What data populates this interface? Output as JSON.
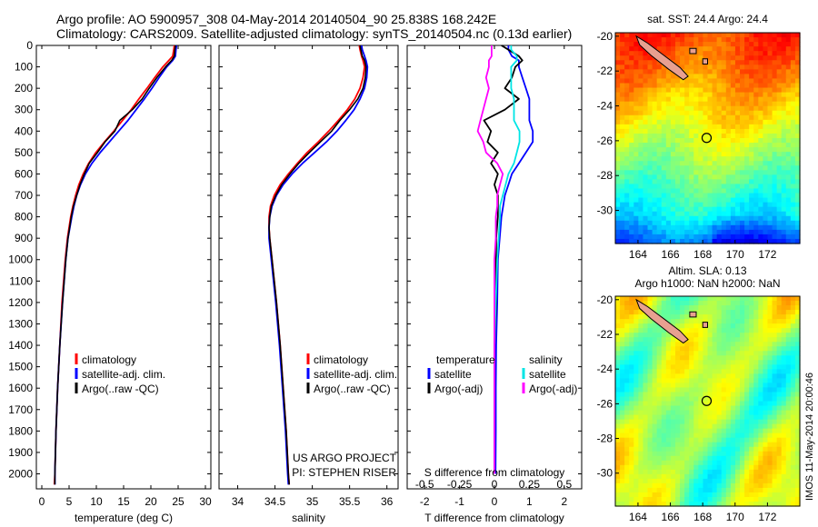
{
  "header": {
    "line1": "Argo profile: AO 5900957_308 04-May-2014 20140504_90 25.838S 168.242E",
    "line2": "Climatology: CARS2009. Satellite-adjusted climatology: synTS_20140504.nc (0.13d earlier)"
  },
  "colors": {
    "climatology": "#ff0000",
    "satellite": "#0000ff",
    "argo": "#000000",
    "argo_s": "#ff00ff",
    "sat_s": "#00e5e5",
    "land": "#e8a090"
  },
  "depth_axis": {
    "ylim": [
      0,
      2070
    ],
    "ticks": [
      0,
      100,
      200,
      300,
      400,
      500,
      600,
      700,
      800,
      900,
      1000,
      1100,
      1200,
      1300,
      1400,
      1500,
      1600,
      1700,
      1800,
      1900,
      2000
    ]
  },
  "chart_data": [
    {
      "type": "line",
      "name": "temperature",
      "xlabel": "temperature (deg C)",
      "xlim": [
        -1,
        31
      ],
      "xticks": [
        0,
        5,
        10,
        15,
        20,
        25,
        30
      ],
      "y": [
        0,
        20,
        50,
        70,
        100,
        150,
        200,
        250,
        300,
        350,
        400,
        450,
        500,
        550,
        600,
        650,
        700,
        750,
        800,
        900,
        1000,
        1200,
        1400,
        1600,
        1800,
        2000,
        2050
      ],
      "series": [
        {
          "name": "climatology",
          "key": "clim",
          "values": [
            24.3,
            24.2,
            24.0,
            23.3,
            22.2,
            20.7,
            19.3,
            17.8,
            16.4,
            14.8,
            13.2,
            11.5,
            9.9,
            8.6,
            7.6,
            6.8,
            6.2,
            5.7,
            5.3,
            4.7,
            4.3,
            3.7,
            3.3,
            2.9,
            2.6,
            2.4,
            2.3
          ]
        },
        {
          "name": "satellite-adj. clim.",
          "key": "sat",
          "values": [
            24.7,
            24.6,
            24.5,
            24.0,
            22.9,
            21.5,
            20.2,
            18.8,
            17.3,
            15.8,
            14.1,
            12.4,
            10.7,
            9.2,
            8.0,
            7.1,
            6.4,
            5.9,
            5.5,
            4.8,
            4.4,
            3.8,
            3.3,
            2.9,
            2.6,
            2.4,
            2.4
          ]
        },
        {
          "name": "Argo(..raw -QC)",
          "key": "argo",
          "values": [
            24.5,
            24.4,
            24.3,
            23.8,
            22.7,
            21.1,
            19.7,
            18.4,
            16.6,
            14.3,
            13.4,
            11.6,
            10.2,
            8.7,
            7.8,
            7.0,
            6.4,
            5.8,
            5.4,
            4.8,
            4.4,
            3.8,
            3.3,
            2.9,
            2.6,
            2.4,
            2.4
          ]
        }
      ],
      "legend": [
        "climatology",
        "satellite-adj. clim.",
        "Argo(..raw -QC)"
      ]
    },
    {
      "type": "line",
      "name": "salinity",
      "xlabel": "salinity",
      "xlim": [
        33.75,
        36.15
      ],
      "xticks": [
        34,
        34.5,
        35,
        35.5,
        36
      ],
      "xticklabels": [
        "34",
        "34.5",
        "35",
        "35.5",
        "36"
      ],
      "y": [
        0,
        20,
        50,
        70,
        100,
        150,
        200,
        250,
        300,
        350,
        400,
        450,
        500,
        550,
        600,
        650,
        700,
        750,
        800,
        850,
        900,
        1000,
        1200,
        1400,
        1600,
        1800,
        2000,
        2050
      ],
      "series": [
        {
          "name": "climatology",
          "key": "clim",
          "values": [
            35.63,
            35.64,
            35.66,
            35.68,
            35.7,
            35.68,
            35.64,
            35.57,
            35.47,
            35.35,
            35.22,
            35.08,
            34.93,
            34.8,
            34.68,
            34.57,
            34.49,
            34.44,
            34.42,
            34.42,
            34.43,
            34.46,
            34.52,
            34.57,
            34.61,
            34.65,
            34.68,
            34.69
          ]
        },
        {
          "name": "satellite-adj. clim.",
          "key": "sat",
          "values": [
            35.66,
            35.67,
            35.7,
            35.72,
            35.74,
            35.73,
            35.7,
            35.64,
            35.56,
            35.45,
            35.33,
            35.19,
            35.03,
            34.87,
            34.73,
            34.61,
            34.52,
            34.46,
            34.43,
            34.42,
            34.42,
            34.45,
            34.51,
            34.56,
            34.6,
            34.64,
            34.67,
            34.68
          ]
        },
        {
          "name": "Argo(..raw -QC)",
          "key": "argo",
          "values": [
            35.64,
            35.65,
            35.67,
            35.7,
            35.72,
            35.71,
            35.68,
            35.61,
            35.5,
            35.37,
            35.26,
            35.11,
            34.96,
            34.82,
            34.7,
            34.59,
            34.51,
            34.45,
            34.43,
            34.42,
            34.43,
            34.46,
            34.52,
            34.57,
            34.61,
            34.65,
            34.68,
            34.69
          ]
        }
      ],
      "legend": [
        "climatology",
        "satellite-adj. clim.",
        "Argo(..raw -QC)"
      ],
      "annotation_line1": "US ARGO PROJECT",
      "annotation_line2": "PI: STEPHEN RISER"
    },
    {
      "type": "line",
      "name": "differences",
      "xlabel": "T difference from climatology",
      "top_label": "S difference from climatology",
      "xlim": [
        -2.5,
        2.5
      ],
      "xticks": [
        -2,
        -1,
        0,
        1,
        2
      ],
      "top_ticks": [
        -0.5,
        -0.25,
        0,
        0.25,
        0.5
      ],
      "top_ticklabels": [
        "-0.5",
        "-0.25",
        "0",
        "0.25",
        "0.5"
      ],
      "y": [
        0,
        20,
        50,
        70,
        100,
        150,
        200,
        250,
        300,
        350,
        400,
        450,
        500,
        550,
        600,
        650,
        700,
        750,
        800,
        900,
        1000,
        1200,
        1400,
        1600,
        1800,
        2000
      ],
      "series": [
        {
          "name": "satellite (temperature)",
          "key": "sat",
          "values": [
            0.4,
            0.4,
            0.5,
            0.7,
            0.7,
            0.8,
            0.9,
            1.0,
            1.0,
            1.0,
            1.1,
            1.1,
            0.9,
            0.7,
            0.5,
            0.4,
            0.3,
            0.25,
            0.2,
            0.15,
            0.1,
            0.08,
            0.05,
            0.04,
            0.04,
            0.03
          ]
        },
        {
          "name": "Argo(-adj) (temperature)",
          "key": "argo",
          "values": [
            0.2,
            0.4,
            0.7,
            0.8,
            0.6,
            0.5,
            0.3,
            0.7,
            0.3,
            -0.3,
            -0.1,
            -0.2,
            0.1,
            -0.1,
            0.1,
            0.0,
            0.1,
            0.1,
            0.1,
            0.05,
            0.05,
            0.05,
            0.0,
            0.0,
            0.0,
            0.0
          ]
        },
        {
          "name": "satellite (salinity)",
          "key": "sats",
          "values": [
            0.12,
            0.12,
            0.16,
            0.16,
            0.12,
            0.12,
            0.12,
            0.14,
            0.14,
            0.14,
            0.18,
            0.18,
            0.16,
            0.14,
            0.1,
            0.08,
            0.06,
            0.04,
            0.04,
            0.03,
            0.02,
            0.01,
            0.0,
            0.0,
            0.0,
            0.0
          ]
        },
        {
          "name": "Argo(-adj) (salinity)",
          "key": "argos",
          "values": [
            -0.02,
            -0.02,
            -0.02,
            -0.04,
            -0.04,
            -0.06,
            -0.04,
            -0.06,
            -0.08,
            -0.1,
            -0.12,
            -0.08,
            -0.06,
            0.02,
            0.06,
            0.04,
            0.02,
            0.02,
            0.01,
            0.01,
            0.0,
            0.0,
            0.0,
            0.0,
            0.0,
            0.0
          ]
        }
      ],
      "legend_titles": [
        "temperature",
        "salinity"
      ],
      "legend": [
        "satellite",
        "Argo(-adj)",
        "satellite",
        "Argo(-adj)"
      ]
    },
    {
      "type": "heatmap",
      "name": "sst_map",
      "title": "sat. SST: 24.4 Argo: 24.4",
      "xlim": [
        162.6,
        174.0
      ],
      "ylim": [
        -31.9,
        -19.8
      ],
      "xticks": [
        164,
        166,
        168,
        170,
        172
      ],
      "yticks": [
        -20,
        -22,
        -24,
        -26,
        -28,
        -30
      ],
      "marker": [
        168.242,
        -25.838
      ],
      "colorscale": "jet"
    },
    {
      "type": "heatmap",
      "name": "sla_map",
      "title": "Altim. SLA: 0.13",
      "subtitle": "Argo h1000: NaN h2000: NaN",
      "xlim": [
        162.6,
        174.0
      ],
      "ylim": [
        -31.9,
        -19.8
      ],
      "xticks": [
        164,
        166,
        168,
        170,
        172
      ],
      "yticks": [
        -20,
        -22,
        -24,
        -26,
        -28,
        -30
      ],
      "marker": [
        168.242,
        -25.838
      ],
      "colorscale": "jet"
    }
  ],
  "footer": {
    "stamp": "IMOS 11-May-2014 20:00:46"
  }
}
